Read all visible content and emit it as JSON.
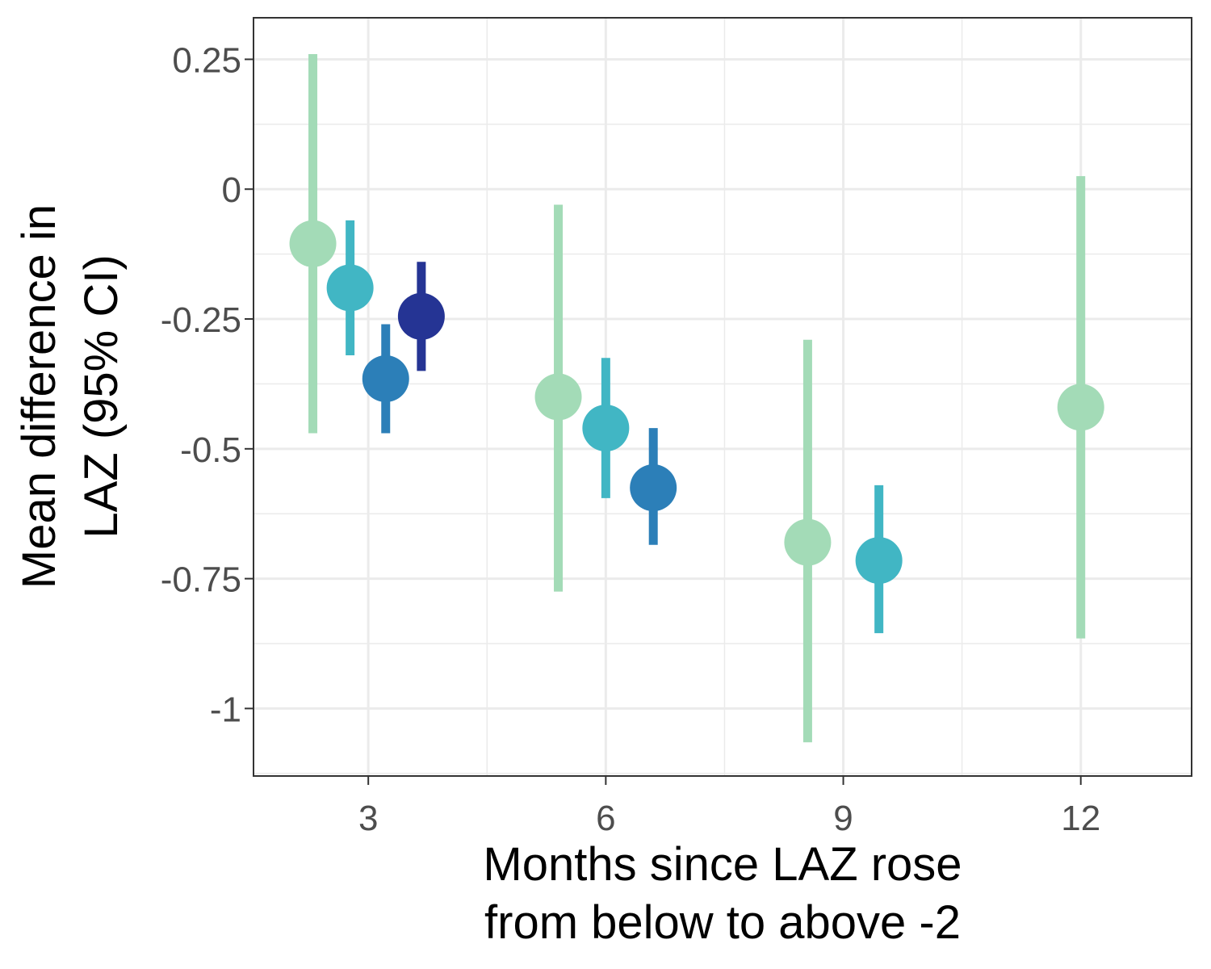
{
  "chart_data": {
    "type": "scatter",
    "subtype": "pointrange",
    "xlabel": [
      "Months since LAZ rose",
      "from below to above -2"
    ],
    "ylabel": [
      "Mean difference in",
      "LAZ (95% CI)"
    ],
    "x_ticks": [
      3,
      6,
      9,
      12
    ],
    "y_ticks": [
      0.25,
      0,
      -0.25,
      -0.5,
      -0.75,
      -1
    ],
    "y_tick_labels": [
      "0.25",
      "0",
      "-0.25",
      "-0.5",
      "-0.75",
      "-1"
    ],
    "xlim": [
      1.55,
      13.4
    ],
    "ylim": [
      -1.13,
      0.33
    ],
    "grid": true,
    "legend": "none",
    "colors": {
      "light_green": "#a3dbb7",
      "teal": "#41b6c4",
      "blue": "#2c7fb8",
      "navy": "#253494"
    },
    "points": [
      {
        "x": 2.3,
        "y": -0.105,
        "lower": -0.47,
        "upper": 0.26,
        "color": "#a3dbb7"
      },
      {
        "x": 2.77,
        "y": -0.19,
        "lower": -0.32,
        "upper": -0.06,
        "color": "#41b6c4"
      },
      {
        "x": 3.22,
        "y": -0.365,
        "lower": -0.47,
        "upper": -0.26,
        "color": "#2c7fb8"
      },
      {
        "x": 3.67,
        "y": -0.245,
        "lower": -0.35,
        "upper": -0.14,
        "color": "#253494"
      },
      {
        "x": 5.4,
        "y": -0.4,
        "lower": -0.775,
        "upper": -0.03,
        "color": "#a3dbb7"
      },
      {
        "x": 6.0,
        "y": -0.46,
        "lower": -0.595,
        "upper": -0.325,
        "color": "#41b6c4"
      },
      {
        "x": 6.6,
        "y": -0.575,
        "lower": -0.685,
        "upper": -0.46,
        "color": "#2c7fb8"
      },
      {
        "x": 8.55,
        "y": -0.68,
        "lower": -1.065,
        "upper": -0.29,
        "color": "#a3dbb7"
      },
      {
        "x": 9.45,
        "y": -0.715,
        "lower": -0.855,
        "upper": -0.57,
        "color": "#41b6c4"
      },
      {
        "x": 12.0,
        "y": -0.42,
        "lower": -0.865,
        "upper": 0.025,
        "color": "#a3dbb7"
      }
    ]
  }
}
